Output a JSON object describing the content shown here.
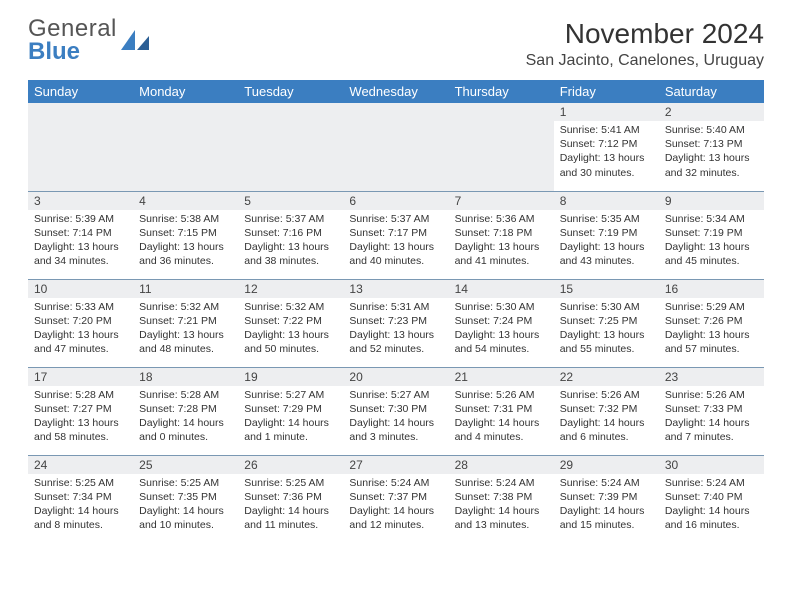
{
  "brand": {
    "line1": "General",
    "line2": "Blue"
  },
  "title": "November 2024",
  "location": "San Jacinto, Canelones, Uruguay",
  "colors": {
    "header_bg": "#3b7ec1",
    "header_fg": "#ffffff",
    "grid_line": "#7a98b3",
    "daynum_bg": "#edeef0",
    "text": "#333333",
    "brand_accent": "#3b7ec1"
  },
  "weekdays": [
    "Sunday",
    "Monday",
    "Tuesday",
    "Wednesday",
    "Thursday",
    "Friday",
    "Saturday"
  ],
  "weeks": [
    [
      {
        "empty": true
      },
      {
        "empty": true
      },
      {
        "empty": true
      },
      {
        "empty": true
      },
      {
        "empty": true
      },
      {
        "n": "1",
        "sunrise": "Sunrise: 5:41 AM",
        "sunset": "Sunset: 7:12 PM",
        "day1": "Daylight: 13 hours",
        "day2": "and 30 minutes."
      },
      {
        "n": "2",
        "sunrise": "Sunrise: 5:40 AM",
        "sunset": "Sunset: 7:13 PM",
        "day1": "Daylight: 13 hours",
        "day2": "and 32 minutes."
      }
    ],
    [
      {
        "n": "3",
        "sunrise": "Sunrise: 5:39 AM",
        "sunset": "Sunset: 7:14 PM",
        "day1": "Daylight: 13 hours",
        "day2": "and 34 minutes."
      },
      {
        "n": "4",
        "sunrise": "Sunrise: 5:38 AM",
        "sunset": "Sunset: 7:15 PM",
        "day1": "Daylight: 13 hours",
        "day2": "and 36 minutes."
      },
      {
        "n": "5",
        "sunrise": "Sunrise: 5:37 AM",
        "sunset": "Sunset: 7:16 PM",
        "day1": "Daylight: 13 hours",
        "day2": "and 38 minutes."
      },
      {
        "n": "6",
        "sunrise": "Sunrise: 5:37 AM",
        "sunset": "Sunset: 7:17 PM",
        "day1": "Daylight: 13 hours",
        "day2": "and 40 minutes."
      },
      {
        "n": "7",
        "sunrise": "Sunrise: 5:36 AM",
        "sunset": "Sunset: 7:18 PM",
        "day1": "Daylight: 13 hours",
        "day2": "and 41 minutes."
      },
      {
        "n": "8",
        "sunrise": "Sunrise: 5:35 AM",
        "sunset": "Sunset: 7:19 PM",
        "day1": "Daylight: 13 hours",
        "day2": "and 43 minutes."
      },
      {
        "n": "9",
        "sunrise": "Sunrise: 5:34 AM",
        "sunset": "Sunset: 7:19 PM",
        "day1": "Daylight: 13 hours",
        "day2": "and 45 minutes."
      }
    ],
    [
      {
        "n": "10",
        "sunrise": "Sunrise: 5:33 AM",
        "sunset": "Sunset: 7:20 PM",
        "day1": "Daylight: 13 hours",
        "day2": "and 47 minutes."
      },
      {
        "n": "11",
        "sunrise": "Sunrise: 5:32 AM",
        "sunset": "Sunset: 7:21 PM",
        "day1": "Daylight: 13 hours",
        "day2": "and 48 minutes."
      },
      {
        "n": "12",
        "sunrise": "Sunrise: 5:32 AM",
        "sunset": "Sunset: 7:22 PM",
        "day1": "Daylight: 13 hours",
        "day2": "and 50 minutes."
      },
      {
        "n": "13",
        "sunrise": "Sunrise: 5:31 AM",
        "sunset": "Sunset: 7:23 PM",
        "day1": "Daylight: 13 hours",
        "day2": "and 52 minutes."
      },
      {
        "n": "14",
        "sunrise": "Sunrise: 5:30 AM",
        "sunset": "Sunset: 7:24 PM",
        "day1": "Daylight: 13 hours",
        "day2": "and 54 minutes."
      },
      {
        "n": "15",
        "sunrise": "Sunrise: 5:30 AM",
        "sunset": "Sunset: 7:25 PM",
        "day1": "Daylight: 13 hours",
        "day2": "and 55 minutes."
      },
      {
        "n": "16",
        "sunrise": "Sunrise: 5:29 AM",
        "sunset": "Sunset: 7:26 PM",
        "day1": "Daylight: 13 hours",
        "day2": "and 57 minutes."
      }
    ],
    [
      {
        "n": "17",
        "sunrise": "Sunrise: 5:28 AM",
        "sunset": "Sunset: 7:27 PM",
        "day1": "Daylight: 13 hours",
        "day2": "and 58 minutes."
      },
      {
        "n": "18",
        "sunrise": "Sunrise: 5:28 AM",
        "sunset": "Sunset: 7:28 PM",
        "day1": "Daylight: 14 hours",
        "day2": "and 0 minutes."
      },
      {
        "n": "19",
        "sunrise": "Sunrise: 5:27 AM",
        "sunset": "Sunset: 7:29 PM",
        "day1": "Daylight: 14 hours",
        "day2": "and 1 minute."
      },
      {
        "n": "20",
        "sunrise": "Sunrise: 5:27 AM",
        "sunset": "Sunset: 7:30 PM",
        "day1": "Daylight: 14 hours",
        "day2": "and 3 minutes."
      },
      {
        "n": "21",
        "sunrise": "Sunrise: 5:26 AM",
        "sunset": "Sunset: 7:31 PM",
        "day1": "Daylight: 14 hours",
        "day2": "and 4 minutes."
      },
      {
        "n": "22",
        "sunrise": "Sunrise: 5:26 AM",
        "sunset": "Sunset: 7:32 PM",
        "day1": "Daylight: 14 hours",
        "day2": "and 6 minutes."
      },
      {
        "n": "23",
        "sunrise": "Sunrise: 5:26 AM",
        "sunset": "Sunset: 7:33 PM",
        "day1": "Daylight: 14 hours",
        "day2": "and 7 minutes."
      }
    ],
    [
      {
        "n": "24",
        "sunrise": "Sunrise: 5:25 AM",
        "sunset": "Sunset: 7:34 PM",
        "day1": "Daylight: 14 hours",
        "day2": "and 8 minutes."
      },
      {
        "n": "25",
        "sunrise": "Sunrise: 5:25 AM",
        "sunset": "Sunset: 7:35 PM",
        "day1": "Daylight: 14 hours",
        "day2": "and 10 minutes."
      },
      {
        "n": "26",
        "sunrise": "Sunrise: 5:25 AM",
        "sunset": "Sunset: 7:36 PM",
        "day1": "Daylight: 14 hours",
        "day2": "and 11 minutes."
      },
      {
        "n": "27",
        "sunrise": "Sunrise: 5:24 AM",
        "sunset": "Sunset: 7:37 PM",
        "day1": "Daylight: 14 hours",
        "day2": "and 12 minutes."
      },
      {
        "n": "28",
        "sunrise": "Sunrise: 5:24 AM",
        "sunset": "Sunset: 7:38 PM",
        "day1": "Daylight: 14 hours",
        "day2": "and 13 minutes."
      },
      {
        "n": "29",
        "sunrise": "Sunrise: 5:24 AM",
        "sunset": "Sunset: 7:39 PM",
        "day1": "Daylight: 14 hours",
        "day2": "and 15 minutes."
      },
      {
        "n": "30",
        "sunrise": "Sunrise: 5:24 AM",
        "sunset": "Sunset: 7:40 PM",
        "day1": "Daylight: 14 hours",
        "day2": "and 16 minutes."
      }
    ]
  ]
}
